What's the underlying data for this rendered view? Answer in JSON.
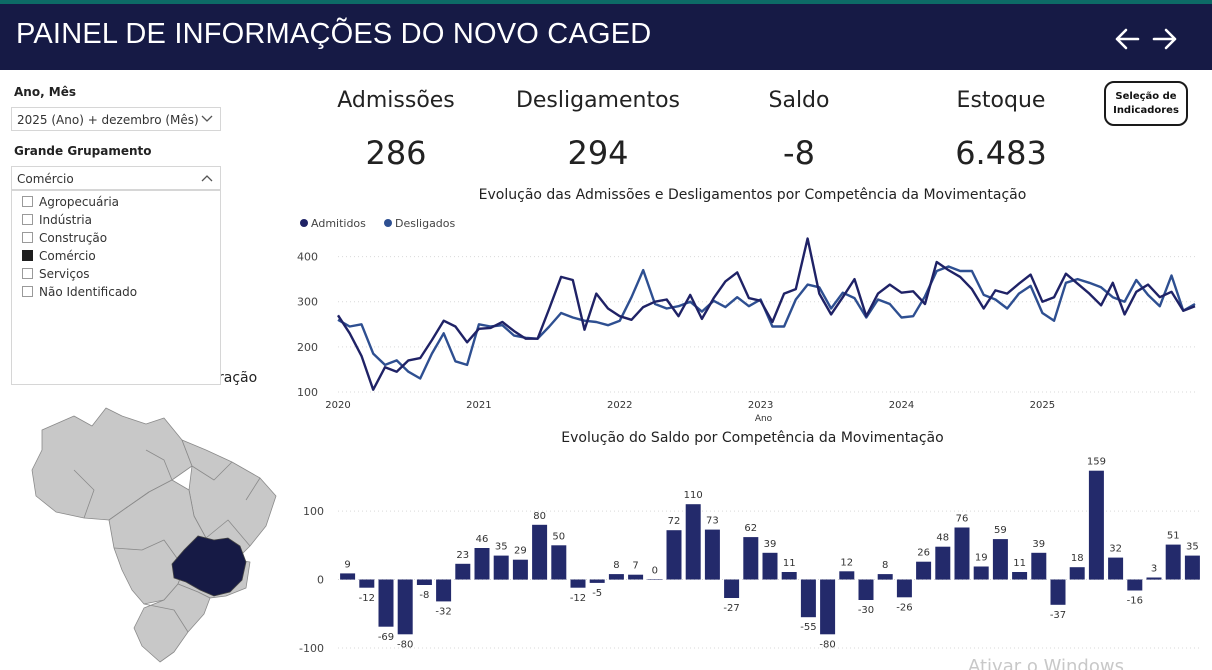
{
  "header": {
    "title": "PAINEL DE INFORMAÇÕES DO NOVO CAGED",
    "back_icon": "arrow-left-icon",
    "forward_icon": "arrow-right-icon"
  },
  "filters": {
    "period_label": "Ano, Mês",
    "period_value": "2025 (Ano) + dezembro (Mês)",
    "group_label": "Grande Grupamento",
    "group_value": "Comércio",
    "options": [
      {
        "label": "Agropecuária",
        "checked": false
      },
      {
        "label": "Indústria",
        "checked": false
      },
      {
        "label": "Construção",
        "checked": false
      },
      {
        "label": "Comércio",
        "checked": true
      },
      {
        "label": "Serviços",
        "checked": false
      },
      {
        "label": "Não Identificado",
        "checked": false
      }
    ]
  },
  "map": {
    "title_fragment": "ração",
    "highlight_color": "#161a45",
    "base_color": "#c8c8c8"
  },
  "kpis": [
    {
      "label": "Admissões",
      "value": "286"
    },
    {
      "label": "Desligamentos",
      "value": "294"
    },
    {
      "label": "Saldo",
      "value": "-8"
    },
    {
      "label": "Estoque",
      "value": "6.483"
    }
  ],
  "indicator_button": {
    "line1": "Seleção de",
    "line2": "Indicadores"
  },
  "watermark": "Ativar o Windows",
  "chart_data": [
    {
      "type": "line",
      "title": "Evolução das Admissões e Desligamentos por Competência da Movimentação",
      "xlabel": "Ano",
      "ylabel": "",
      "ylim": [
        100,
        450
      ],
      "yticks": [
        100,
        200,
        300,
        400
      ],
      "x_start": "2020-01",
      "year_ticks": [
        "2020",
        "2021",
        "2022",
        "2023",
        "2024",
        "2025"
      ],
      "legend": "top-left",
      "grid": true,
      "series": [
        {
          "name": "Admitidos",
          "color": "#1f2266",
          "values": [
            270,
            230,
            180,
            105,
            155,
            145,
            170,
            175,
            215,
            258,
            245,
            210,
            240,
            242,
            255,
            235,
            218,
            218,
            285,
            355,
            348,
            238,
            318,
            285,
            268,
            260,
            288,
            300,
            305,
            268,
            315,
            262,
            308,
            345,
            365,
            308,
            302,
            255,
            318,
            328,
            440,
            318,
            272,
            310,
            350,
            268,
            318,
            338,
            320,
            323,
            295,
            388,
            370,
            355,
            328,
            285,
            325,
            318,
            340,
            360,
            300,
            310,
            362,
            340,
            318,
            292,
            342,
            272,
            322,
            338,
            310,
            322,
            280,
            290
          ]
        },
        {
          "name": "Desligados",
          "color": "#2e4f91",
          "values": [
            260,
            245,
            250,
            185,
            160,
            170,
            145,
            130,
            185,
            230,
            168,
            160,
            250,
            245,
            248,
            225,
            220,
            218,
            245,
            275,
            265,
            258,
            255,
            248,
            258,
            310,
            370,
            295,
            285,
            290,
            300,
            278,
            302,
            288,
            310,
            290,
            305,
            245,
            245,
            305,
            338,
            332,
            285,
            320,
            308,
            265,
            305,
            295,
            265,
            268,
            312,
            368,
            378,
            368,
            368,
            315,
            305,
            285,
            318,
            335,
            275,
            258,
            342,
            350,
            342,
            332,
            310,
            300,
            348,
            315,
            290,
            358,
            280,
            295
          ]
        }
      ]
    },
    {
      "type": "bar",
      "title": "Evolução do Saldo por Competência da Movimentação",
      "xlabel": "",
      "ylabel": "",
      "ylim": [
        -100,
        160
      ],
      "yticks": [
        -100,
        0,
        100
      ],
      "color": "#232a6b",
      "grid": true,
      "values": [
        9,
        -12,
        -69,
        -80,
        -8,
        -32,
        23,
        46,
        35,
        29,
        80,
        50,
        -12,
        -5,
        8,
        7,
        0,
        72,
        110,
        73,
        -27,
        62,
        39,
        11,
        -55,
        -80,
        12,
        -30,
        8,
        -26,
        26,
        48,
        76,
        19,
        59,
        11,
        39,
        -37,
        18,
        159,
        32,
        -16,
        3,
        51,
        35
      ],
      "labels": [
        "9",
        "-12",
        "-69",
        "-80",
        "-8",
        "-32",
        "23",
        "46",
        "35",
        "29",
        "80",
        "50",
        "-12",
        "-5",
        "8",
        "7",
        "0",
        "72",
        "110",
        "73",
        "-27",
        "62",
        "39",
        "11",
        "-55",
        "-80",
        "12",
        "-30",
        "8",
        "-26",
        "26",
        "48",
        "76",
        "19",
        "59",
        "11",
        "39",
        "-37",
        "18",
        "159",
        "32",
        "-16",
        "3",
        "51",
        "35"
      ]
    }
  ]
}
